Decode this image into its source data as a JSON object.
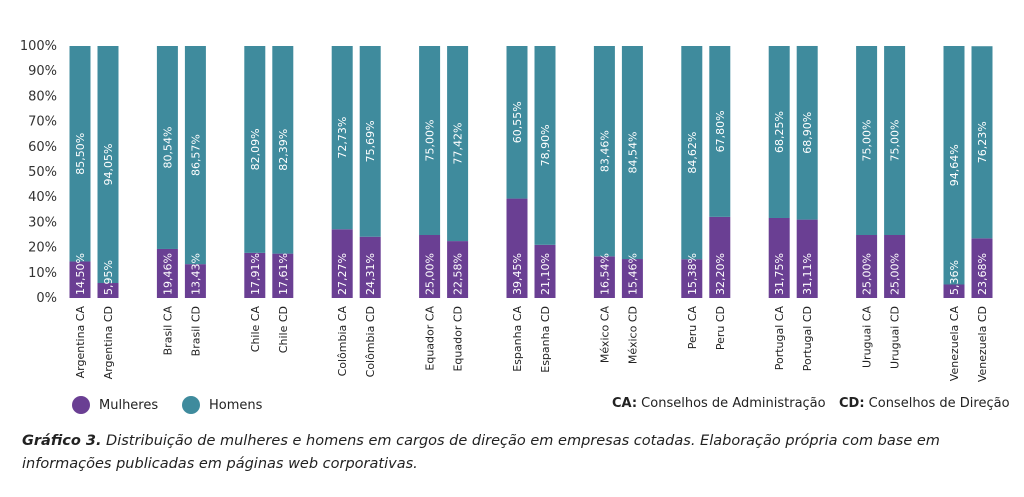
{
  "colors": {
    "mulheres": "#6a3f93",
    "homens": "#3f8b9d"
  },
  "legend": {
    "mulheres_label": "Mulheres",
    "homens_label": "Homens",
    "ca_key": "CA:",
    "ca_text": " Conselhos de Administração",
    "cd_key": "CD:",
    "cd_text": " Conselhos de Direção"
  },
  "caption": {
    "lead": "Gráfico 3.",
    "text": " Distribuição de mulheres e homens em cargos de direção em empresas cotadas. Elaboração própria com base em informações publicadas em páginas web corporativas."
  },
  "chart_data": {
    "type": "bar",
    "stacked": true,
    "y_ticks": [
      "0%",
      "10%",
      "20%",
      "30%",
      "40%",
      "50%",
      "60%",
      "70%",
      "80%",
      "90%",
      "100%"
    ],
    "ylim": [
      0,
      100
    ],
    "categories": [
      "Argentina CA",
      "Argentina CD",
      "Brasil CA",
      "Brasil CD",
      "Chile CA",
      "Chile CD",
      "Colômbia CA",
      "Colômbia CD",
      "Equador CA",
      "Equador CD",
      "Espanha CA",
      "Espanha CD",
      "México CA",
      "México CD",
      "Peru CA",
      "Peru CD",
      "Portugal CA",
      "Portugal CD",
      "Uruguai CA",
      "Uruguai CD",
      "Venezuela CA",
      "Venezuela CD"
    ],
    "series": [
      {
        "name": "Mulheres",
        "values": [
          14.5,
          5.95,
          19.46,
          13.43,
          17.91,
          17.61,
          27.27,
          24.31,
          25.0,
          22.58,
          39.45,
          21.1,
          16.54,
          15.46,
          15.38,
          32.2,
          31.75,
          31.11,
          25.0,
          25.0,
          5.36,
          23.68
        ],
        "labels": [
          "14,50%",
          "5,95%",
          "19,46%",
          "13,43%",
          "17,91%",
          "17,61%",
          "27,27%",
          "24,31%",
          "25,00%",
          "22,58%",
          "39,45%",
          "21,10%",
          "16,54%",
          "15,46%",
          "15,38%",
          "32,20%",
          "31,75%",
          "31,11%",
          "25,00%",
          "25,00%",
          "5,36%",
          "23,68%"
        ]
      },
      {
        "name": "Homens",
        "values": [
          85.5,
          94.05,
          80.54,
          86.57,
          82.09,
          82.39,
          72.73,
          75.69,
          75.0,
          77.42,
          60.55,
          78.9,
          83.46,
          84.54,
          84.62,
          67.8,
          68.25,
          68.9,
          75.0,
          75.0,
          94.64,
          76.23
        ],
        "labels": [
          "85,50%",
          "94,05%",
          "80,54%",
          "86,57%",
          "82,09%",
          "82,39%",
          "72,73%",
          "75,69%",
          "75,00%",
          "77,42%",
          "60,55%",
          "78,90%",
          "83,46%",
          "84,54%",
          "84,62%",
          "67,80%",
          "68,25%",
          "68,90%",
          "75,00%",
          "75,00%",
          "94,64%",
          "76,23%"
        ]
      }
    ]
  }
}
